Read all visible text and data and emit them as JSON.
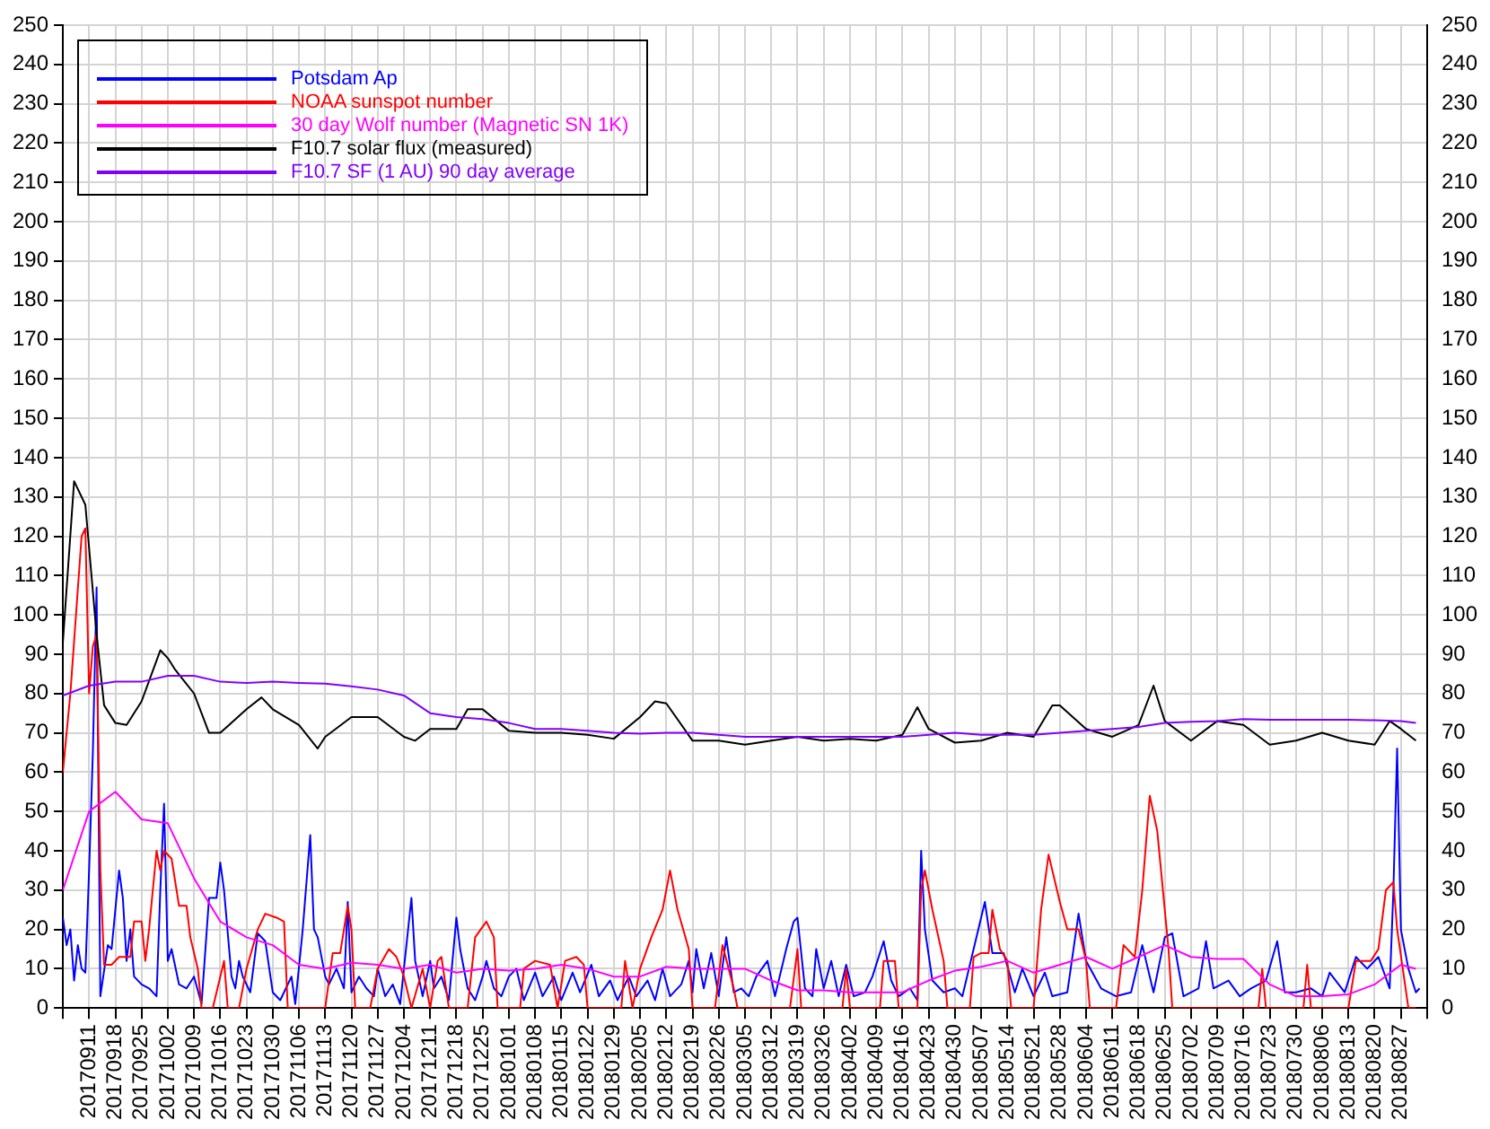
{
  "chart_data": {
    "type": "line",
    "legend": "top left",
    "grid": true,
    "marker": "none",
    "line_style": "solid",
    "xlim": [
      "2017-09-04",
      "2018-09-03"
    ],
    "xticks": [
      {
        "value": "2017-09-04",
        "label": null
      },
      {
        "value": "2017-09-11",
        "label": "20170911"
      },
      {
        "value": "2017-09-18",
        "label": "20170918"
      },
      {
        "value": "2017-09-25",
        "label": "20170925"
      },
      {
        "value": "2017-10-02",
        "label": "20171002"
      },
      {
        "value": "2017-10-09",
        "label": "20171009"
      },
      {
        "value": "2017-10-16",
        "label": "20171016"
      },
      {
        "value": "2017-10-23",
        "label": "20171023"
      },
      {
        "value": "2017-10-30",
        "label": "20171030"
      },
      {
        "value": "2017-11-06",
        "label": "20171106"
      },
      {
        "value": "2017-11-13",
        "label": "20171113"
      },
      {
        "value": "2017-11-20",
        "label": "20171120"
      },
      {
        "value": "2017-11-27",
        "label": "20171127"
      },
      {
        "value": "2017-12-04",
        "label": "20171204"
      },
      {
        "value": "2017-12-11",
        "label": "20171211"
      },
      {
        "value": "2017-12-18",
        "label": "20171218"
      },
      {
        "value": "2017-12-25",
        "label": "20171225"
      },
      {
        "value": "2018-01-01",
        "label": "20180101"
      },
      {
        "value": "2018-01-08",
        "label": "20180108"
      },
      {
        "value": "2018-01-15",
        "label": "20180115"
      },
      {
        "value": "2018-01-22",
        "label": "20180122"
      },
      {
        "value": "2018-01-29",
        "label": "20180129"
      },
      {
        "value": "2018-02-05",
        "label": "20180205"
      },
      {
        "value": "2018-02-12",
        "label": "20180212"
      },
      {
        "value": "2018-02-19",
        "label": "20180219"
      },
      {
        "value": "2018-02-26",
        "label": "20180226"
      },
      {
        "value": "2018-03-05",
        "label": "20180305"
      },
      {
        "value": "2018-03-12",
        "label": "20180312"
      },
      {
        "value": "2018-03-19",
        "label": "20180319"
      },
      {
        "value": "2018-03-26",
        "label": "20180326"
      },
      {
        "value": "2018-04-02",
        "label": "20180402"
      },
      {
        "value": "2018-04-09",
        "label": "20180409"
      },
      {
        "value": "2018-04-16",
        "label": "20180416"
      },
      {
        "value": "2018-04-23",
        "label": "20180423"
      },
      {
        "value": "2018-04-30",
        "label": "20180430"
      },
      {
        "value": "2018-05-07",
        "label": "20180507"
      },
      {
        "value": "2018-05-14",
        "label": "20180514"
      },
      {
        "value": "2018-05-21",
        "label": "20180521"
      },
      {
        "value": "2018-05-28",
        "label": "20180528"
      },
      {
        "value": "2018-06-04",
        "label": "20180604"
      },
      {
        "value": "2018-06-11",
        "label": "20180611"
      },
      {
        "value": "2018-06-18",
        "label": "20180618"
      },
      {
        "value": "2018-06-25",
        "label": "20180625"
      },
      {
        "value": "2018-07-02",
        "label": "20180702"
      },
      {
        "value": "2018-07-09",
        "label": "20180709"
      },
      {
        "value": "2018-07-16",
        "label": "20180716"
      },
      {
        "value": "2018-07-23",
        "label": "20180723"
      },
      {
        "value": "2018-07-30",
        "label": "20180730"
      },
      {
        "value": "2018-08-06",
        "label": "20180806"
      },
      {
        "value": "2018-08-13",
        "label": "20180813"
      },
      {
        "value": "2018-08-20",
        "label": "20180820"
      },
      {
        "value": "2018-08-27",
        "label": "20180827"
      },
      {
        "value": "2018-09-03",
        "label": null
      }
    ],
    "ylim": [
      0,
      250
    ],
    "yticks": [
      0,
      10,
      20,
      30,
      40,
      50,
      60,
      70,
      80,
      90,
      100,
      110,
      120,
      130,
      140,
      150,
      160,
      170,
      180,
      190,
      200,
      210,
      220,
      230,
      240,
      250
    ],
    "y2lim": [
      0,
      250
    ],
    "y2ticks": [
      0,
      10,
      20,
      30,
      40,
      50,
      60,
      70,
      80,
      90,
      100,
      110,
      120,
      130,
      140,
      150,
      160,
      170,
      180,
      190,
      200,
      210,
      220,
      230,
      240,
      250
    ],
    "x": [
      "2017-09-04",
      "2017-09-11",
      "2017-09-18",
      "2017-09-25",
      "2017-10-02",
      "2017-10-09",
      "2017-10-16",
      "2017-10-23",
      "2017-10-30",
      "2017-11-06",
      "2017-11-13",
      "2017-11-20",
      "2017-11-27",
      "2017-12-04",
      "2017-12-11",
      "2017-12-18",
      "2017-12-25",
      "2018-01-01",
      "2018-01-08",
      "2018-01-15",
      "2018-01-22",
      "2018-01-29",
      "2018-02-05",
      "2018-02-12",
      "2018-02-19",
      "2018-02-26",
      "2018-03-05",
      "2018-03-12",
      "2018-03-19",
      "2018-03-26",
      "2018-04-02",
      "2018-04-09",
      "2018-04-16",
      "2018-04-23",
      "2018-04-30",
      "2018-05-07",
      "2018-05-14",
      "2018-05-21",
      "2018-05-28",
      "2018-06-04",
      "2018-06-11",
      "2018-06-18",
      "2018-06-25",
      "2018-07-02",
      "2018-07-09",
      "2018-07-16",
      "2018-07-23",
      "2018-07-30",
      "2018-08-06",
      "2018-08-13",
      "2018-08-20",
      "2018-08-27",
      "2018-08-31"
    ],
    "series": [
      {
        "name": "Potsdam Ap",
        "color": "#0000ff",
        "x": [
          "2017-09-04",
          "2017-09-05",
          "2017-09-06",
          "2017-09-07",
          "2017-09-08",
          "2017-09-09",
          "2017-09-10",
          "2017-09-11",
          "2017-09-12",
          "2017-09-13",
          "2017-09-14",
          "2017-09-16",
          "2017-09-17",
          "2017-09-19",
          "2017-09-20",
          "2017-09-21",
          "2017-09-22",
          "2017-09-23",
          "2017-09-25",
          "2017-09-27",
          "2017-09-29",
          "2017-09-30",
          "2017-10-01",
          "2017-10-02",
          "2017-10-03",
          "2017-10-05",
          "2017-10-07",
          "2017-10-09",
          "2017-10-11",
          "2017-10-13",
          "2017-10-15",
          "2017-10-16",
          "2017-10-17",
          "2017-10-19",
          "2017-10-20",
          "2017-10-21",
          "2017-10-22",
          "2017-10-24",
          "2017-10-26",
          "2017-10-28",
          "2017-10-30",
          "2017-11-01",
          "2017-11-04",
          "2017-11-05",
          "2017-11-07",
          "2017-11-09",
          "2017-11-10",
          "2017-11-11",
          "2017-11-13",
          "2017-11-14",
          "2017-11-16",
          "2017-11-18",
          "2017-11-19",
          "2017-11-20",
          "2017-11-22",
          "2017-11-24",
          "2017-11-26",
          "2017-11-27",
          "2017-11-29",
          "2017-12-01",
          "2017-12-03",
          "2017-12-04",
          "2017-12-06",
          "2017-12-07",
          "2017-12-09",
          "2017-12-11",
          "2017-12-12",
          "2017-12-14",
          "2017-12-16",
          "2017-12-18",
          "2017-12-19",
          "2017-12-21",
          "2017-12-23",
          "2017-12-25",
          "2017-12-26",
          "2017-12-28",
          "2017-12-30",
          "2018-01-01",
          "2018-01-03",
          "2018-01-05",
          "2018-01-08",
          "2018-01-10",
          "2018-01-13",
          "2018-01-15",
          "2018-01-18",
          "2018-01-20",
          "2018-01-23",
          "2018-01-25",
          "2018-01-28",
          "2018-01-30",
          "2018-02-02",
          "2018-02-04",
          "2018-02-07",
          "2018-02-09",
          "2018-02-11",
          "2018-02-13",
          "2018-02-16",
          "2018-02-18",
          "2018-02-19",
          "2018-02-20",
          "2018-02-22",
          "2018-02-24",
          "2018-02-26",
          "2018-02-28",
          "2018-03-02",
          "2018-03-04",
          "2018-03-06",
          "2018-03-08",
          "2018-03-11",
          "2018-03-13",
          "2018-03-16",
          "2018-03-18",
          "2018-03-19",
          "2018-03-21",
          "2018-03-23",
          "2018-03-24",
          "2018-03-26",
          "2018-03-28",
          "2018-03-30",
          "2018-04-01",
          "2018-04-03",
          "2018-04-06",
          "2018-04-08",
          "2018-04-11",
          "2018-04-13",
          "2018-04-15",
          "2018-04-18",
          "2018-04-20",
          "2018-04-21",
          "2018-04-22",
          "2018-04-24",
          "2018-04-27",
          "2018-04-30",
          "2018-05-02",
          "2018-05-07",
          "2018-05-08",
          "2018-05-10",
          "2018-05-13",
          "2018-05-16",
          "2018-05-18",
          "2018-05-21",
          "2018-05-24",
          "2018-05-26",
          "2018-05-30",
          "2018-06-02",
          "2018-06-04",
          "2018-06-08",
          "2018-06-12",
          "2018-06-16",
          "2018-06-19",
          "2018-06-22",
          "2018-06-25",
          "2018-06-27",
          "2018-06-30",
          "2018-07-04",
          "2018-07-06",
          "2018-07-08",
          "2018-07-12",
          "2018-07-15",
          "2018-07-18",
          "2018-07-22",
          "2018-07-25",
          "2018-07-27",
          "2018-07-30",
          "2018-08-03",
          "2018-08-06",
          "2018-08-08",
          "2018-08-12",
          "2018-08-15",
          "2018-08-18",
          "2018-08-21",
          "2018-08-24",
          "2018-08-25",
          "2018-08-26",
          "2018-08-27",
          "2018-08-29",
          "2018-08-31",
          "2018-09-01"
        ],
        "values": [
          23,
          16,
          20,
          7,
          16,
          10,
          9,
          35,
          65,
          107,
          3,
          16,
          15,
          35,
          28,
          12,
          20,
          8,
          6,
          5,
          3,
          30,
          52,
          12,
          15,
          6,
          5,
          8,
          1,
          28,
          28,
          37,
          30,
          8,
          5,
          12,
          8,
          4,
          19,
          17,
          4,
          2,
          8,
          1,
          20,
          44,
          20,
          18,
          8,
          6,
          10,
          5,
          27,
          4,
          8,
          5,
          3,
          10,
          3,
          6,
          1,
          10,
          28,
          12,
          3,
          12,
          5,
          8,
          2,
          23,
          15,
          5,
          2,
          8,
          12,
          5,
          3,
          8,
          10,
          2,
          9,
          3,
          8,
          2,
          9,
          4,
          11,
          3,
          7,
          2,
          8,
          3,
          7,
          2,
          10,
          3,
          6,
          12,
          4,
          15,
          5,
          14,
          3,
          18,
          4,
          5,
          3,
          8,
          12,
          3,
          15,
          22,
          23,
          5,
          3,
          15,
          5,
          12,
          3,
          11,
          3,
          4,
          8,
          17,
          7,
          3,
          5,
          2,
          40,
          20,
          7,
          4,
          5,
          3,
          23,
          27,
          14,
          14,
          4,
          10,
          3,
          9,
          3,
          4,
          24,
          12,
          5,
          3,
          4,
          16,
          4,
          18,
          19,
          3,
          5,
          17,
          5,
          7,
          3,
          5,
          7,
          17,
          4,
          4,
          5,
          3,
          9,
          4,
          13,
          10,
          13,
          5,
          30,
          66,
          20,
          10,
          4,
          5
        ]
      },
      {
        "name": "NOAA sunspot number",
        "color": "#ff0000",
        "x": [
          "2017-09-04",
          "2017-09-06",
          "2017-09-09",
          "2017-09-10",
          "2017-09-11",
          "2017-09-12",
          "2017-09-13",
          "2017-09-14",
          "2017-09-15",
          "2017-09-17",
          "2017-09-19",
          "2017-09-22",
          "2017-09-23",
          "2017-09-25",
          "2017-09-26",
          "2017-09-27",
          "2017-09-29",
          "2017-09-30",
          "2017-10-01",
          "2017-10-03",
          "2017-10-05",
          "2017-10-07",
          "2017-10-08",
          "2017-10-10",
          "2017-10-11",
          "2017-10-14",
          "2017-10-17",
          "2017-10-18",
          "2017-10-21",
          "2017-10-23",
          "2017-10-26",
          "2017-10-28",
          "2017-10-31",
          "2017-11-02",
          "2017-11-03",
          "2017-11-13",
          "2017-11-15",
          "2017-11-17",
          "2017-11-19",
          "2017-11-20",
          "2017-11-21",
          "2017-11-25",
          "2017-11-27",
          "2017-11-30",
          "2017-12-02",
          "2017-12-04",
          "2017-12-06",
          "2017-12-09",
          "2017-12-11",
          "2017-12-13",
          "2017-12-14",
          "2017-12-16",
          "2017-12-21",
          "2017-12-23",
          "2017-12-26",
          "2017-12-28",
          "2017-12-29",
          "2018-01-04",
          "2018-01-05",
          "2018-01-08",
          "2018-01-12",
          "2018-01-14",
          "2018-01-16",
          "2018-01-19",
          "2018-01-21",
          "2018-01-22",
          "2018-01-31",
          "2018-02-01",
          "2018-02-03",
          "2018-02-05",
          "2018-02-08",
          "2018-02-11",
          "2018-02-13",
          "2018-02-15",
          "2018-02-18",
          "2018-02-19",
          "2018-02-25",
          "2018-02-27",
          "2018-03-02",
          "2018-03-03",
          "2018-03-17",
          "2018-03-19",
          "2018-03-20",
          "2018-03-31",
          "2018-04-01",
          "2018-04-02",
          "2018-04-10",
          "2018-04-11",
          "2018-04-14",
          "2018-04-15",
          "2018-04-20",
          "2018-04-21",
          "2018-04-22",
          "2018-04-24",
          "2018-04-27",
          "2018-04-28",
          "2018-05-04",
          "2018-05-05",
          "2018-05-07",
          "2018-05-09",
          "2018-05-10",
          "2018-05-12",
          "2018-05-14",
          "2018-05-15",
          "2018-05-21",
          "2018-05-23",
          "2018-05-25",
          "2018-05-28",
          "2018-05-30",
          "2018-06-02",
          "2018-06-04",
          "2018-06-05",
          "2018-06-12",
          "2018-06-14",
          "2018-06-17",
          "2018-06-19",
          "2018-06-21",
          "2018-06-23",
          "2018-06-26",
          "2018-06-27",
          "2018-07-20",
          "2018-07-21",
          "2018-07-22",
          "2018-08-01",
          "2018-08-02",
          "2018-08-03",
          "2018-08-13",
          "2018-08-15",
          "2018-08-19",
          "2018-08-21",
          "2018-08-23",
          "2018-08-25",
          "2018-08-26",
          "2018-08-29",
          "2018-08-31"
        ],
        "values": [
          60,
          80,
          120,
          122,
          80,
          92,
          95,
          35,
          11,
          11,
          13,
          13,
          22,
          22,
          12,
          20,
          40,
          35,
          40,
          38,
          26,
          26,
          18,
          10,
          0,
          0,
          12,
          0,
          0,
          10,
          20,
          24,
          23,
          22,
          0,
          0,
          14,
          14,
          26,
          20,
          0,
          0,
          10,
          15,
          13,
          8,
          0,
          10,
          0,
          12,
          13,
          0,
          0,
          18,
          22,
          18,
          0,
          0,
          10,
          12,
          11,
          0,
          12,
          13,
          11,
          0,
          0,
          12,
          0,
          10,
          18,
          25,
          35,
          25,
          15,
          0,
          0,
          16,
          5,
          0,
          0,
          15,
          0,
          0,
          10,
          0,
          0,
          12,
          12,
          0,
          0,
          30,
          35,
          25,
          12,
          0,
          0,
          13,
          14,
          14,
          25,
          15,
          12,
          0,
          0,
          25,
          39,
          27,
          20,
          20,
          12,
          0,
          0,
          16,
          13,
          30,
          54,
          45,
          15,
          0,
          0,
          10,
          0,
          0,
          11,
          0,
          0,
          12,
          12,
          15,
          30,
          32,
          20,
          0,
          0
        ]
      },
      {
        "name": "30 day Wolf number (Magnetic SN 1K)",
        "color": "#ff00ff",
        "values": [
          30,
          50,
          55,
          48,
          47,
          33,
          22,
          18,
          16,
          11,
          10,
          11.5,
          11,
          10,
          11,
          9,
          10,
          9.5,
          10,
          11,
          10,
          8,
          8,
          10.5,
          10,
          10,
          10,
          7,
          4.5,
          4.5,
          4,
          4,
          4,
          7,
          9.5,
          10.5,
          12,
          9,
          11,
          13,
          10,
          13,
          16,
          13,
          12.5,
          12.5,
          6,
          3,
          3,
          3.5,
          6,
          11,
          10
        ]
      },
      {
        "name": "F10.7 solar flux (measured)",
        "color": "#000000",
        "x": [
          "2017-09-04",
          "2017-09-07",
          "2017-09-10",
          "2017-09-13",
          "2017-09-15",
          "2017-09-18",
          "2017-09-21",
          "2017-09-25",
          "2017-09-30",
          "2017-10-02",
          "2017-10-04",
          "2017-10-09",
          "2017-10-13",
          "2017-10-16",
          "2017-10-23",
          "2017-10-27",
          "2017-10-30",
          "2017-11-06",
          "2017-11-11",
          "2017-11-13",
          "2017-11-20",
          "2017-11-27",
          "2017-12-04",
          "2017-12-07",
          "2017-12-11",
          "2017-12-18",
          "2017-12-21",
          "2017-12-25",
          "2018-01-01",
          "2018-01-08",
          "2018-01-15",
          "2018-01-22",
          "2018-01-29",
          "2018-02-05",
          "2018-02-09",
          "2018-02-12",
          "2018-02-19",
          "2018-02-26",
          "2018-03-05",
          "2018-03-12",
          "2018-03-19",
          "2018-03-26",
          "2018-04-02",
          "2018-04-09",
          "2018-04-16",
          "2018-04-20",
          "2018-04-23",
          "2018-04-30",
          "2018-05-07",
          "2018-05-14",
          "2018-05-21",
          "2018-05-26",
          "2018-05-28",
          "2018-06-04",
          "2018-06-11",
          "2018-06-18",
          "2018-06-22",
          "2018-06-25",
          "2018-07-02",
          "2018-07-09",
          "2018-07-16",
          "2018-07-23",
          "2018-07-30",
          "2018-08-06",
          "2018-08-13",
          "2018-08-20",
          "2018-08-24",
          "2018-08-27",
          "2018-08-31"
        ],
        "values": [
          93,
          134,
          128,
          95,
          77,
          72.5,
          72,
          78,
          91,
          89,
          86,
          80,
          70,
          70,
          76,
          79,
          76,
          72,
          66,
          69,
          74,
          74,
          69,
          68,
          71,
          71,
          76,
          76,
          70.5,
          70,
          70,
          69.5,
          68.5,
          74,
          78,
          77.5,
          68,
          68,
          67,
          68,
          69,
          68,
          68.5,
          68,
          69.5,
          76.5,
          71,
          67.5,
          68,
          70,
          69,
          77,
          77,
          71,
          69,
          72,
          82,
          73,
          68,
          73,
          72,
          67,
          68,
          70,
          68,
          67,
          73,
          71,
          68
        ]
      },
      {
        "name": "F10.7 SF (1 AU) 90 day average",
        "color": "#8000ff",
        "values": [
          79.5,
          82,
          83,
          83,
          84.5,
          84.5,
          83,
          82.7,
          83,
          82.7,
          82.5,
          81.8,
          81,
          79.5,
          75,
          74,
          73.5,
          72.5,
          71,
          71,
          70.5,
          70,
          69.8,
          70,
          70,
          69.5,
          69,
          69,
          69,
          69,
          69,
          69,
          69,
          69.5,
          70,
          69.5,
          69.5,
          69.5,
          70,
          70.5,
          71,
          71.5,
          72.5,
          72.8,
          73,
          73.5,
          73.3,
          73.3,
          73.3,
          73.3,
          73.2,
          73,
          72.5
        ]
      }
    ]
  }
}
